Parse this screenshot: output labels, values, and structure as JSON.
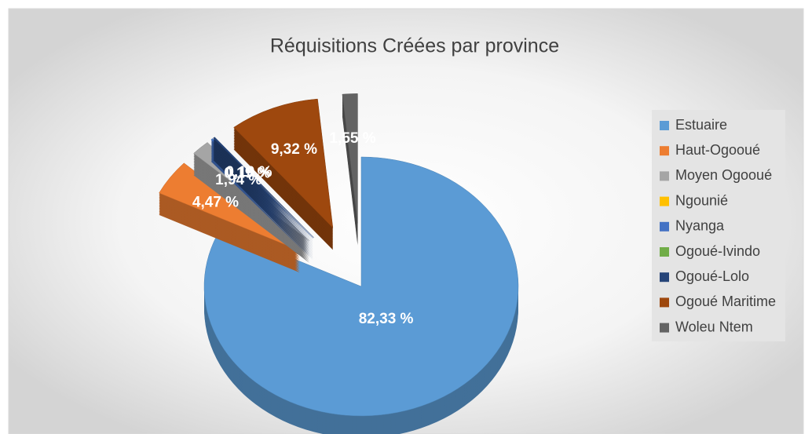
{
  "chart_data": {
    "type": "pie",
    "title": "Réquisitions Créées par province",
    "categories": [
      "Estuaire",
      "Haut-Ogooué",
      "Moyen Ogooué",
      "Ngounié",
      "Nyanga",
      "Ogoué-Ivindo",
      "Ogoué-Lolo",
      "Ogoué Maritime",
      "Woleu Ntem"
    ],
    "values": [
      82.33,
      4.47,
      1.94,
      0,
      0.19,
      0,
      0.19,
      9.32,
      1.55
    ],
    "value_labels": [
      "82,33 %",
      "4,47 %",
      "1,94 %",
      null,
      "0,19 %",
      null,
      "0,19 %",
      "9,32 %",
      "1,55 %"
    ],
    "colors": [
      "#5b9bd5",
      "#ed7d31",
      "#a5a5a5",
      "#ffc000",
      "#4472c4",
      "#70ad47",
      "#264478",
      "#9e480e",
      "#636363"
    ],
    "legend": "right"
  }
}
